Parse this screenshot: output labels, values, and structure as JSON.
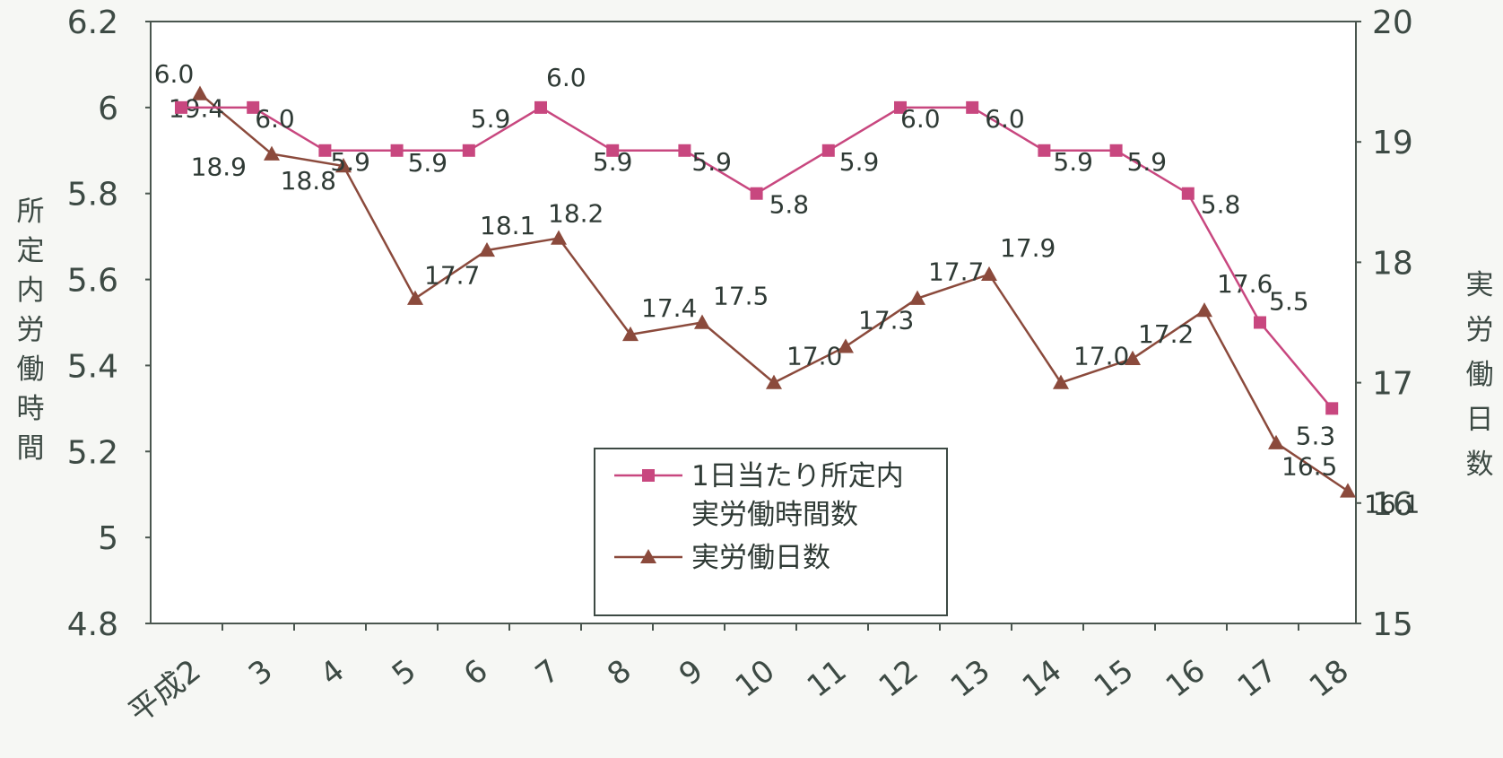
{
  "chart_data": {
    "type": "line",
    "x_categories": [
      "平成2",
      "3",
      "4",
      "5",
      "6",
      "7",
      "8",
      "9",
      "10",
      "11",
      "12",
      "13",
      "14",
      "15",
      "16",
      "17",
      "18"
    ],
    "left_axis": {
      "label": "所定内労働時間",
      "ylim": [
        4.8,
        6.2
      ],
      "ticks": [
        "6.2",
        "6",
        "5.8",
        "5.6",
        "5.4",
        "5.2",
        "5",
        "4.8"
      ]
    },
    "right_axis": {
      "label": "実労働日数",
      "ylim": [
        15,
        20
      ],
      "ticks": [
        "20",
        "19",
        "18",
        "17",
        "16",
        "15"
      ]
    },
    "series": [
      {
        "name": "1日当たり所定内実労働時間数",
        "legend_lines": [
          "1日当たり所定内",
          "実労働時間数"
        ],
        "axis": "left",
        "color": "#c8477f",
        "marker": "square",
        "values": [
          6.0,
          6.0,
          5.9,
          5.9,
          5.9,
          6.0,
          5.9,
          5.9,
          5.8,
          5.9,
          6.0,
          6.0,
          5.9,
          5.9,
          5.8,
          5.5,
          5.3
        ],
        "labels": [
          "6.0",
          "6.0",
          "5.9",
          "5.9",
          "5.9",
          "6.0",
          "5.9",
          "5.9",
          "5.8",
          "5.9",
          "6.0",
          "6.0",
          "5.9",
          "5.9",
          "5.8",
          "5.5",
          "5.3"
        ]
      },
      {
        "name": "実労働日数",
        "legend_lines": [
          "実労働日数"
        ],
        "axis": "right",
        "color": "#8b4a3c",
        "marker": "triangle",
        "values": [
          19.4,
          18.9,
          18.8,
          17.7,
          18.1,
          18.2,
          17.4,
          17.5,
          17.0,
          17.3,
          17.7,
          17.9,
          17.0,
          17.2,
          17.6,
          16.5,
          16.1
        ],
        "labels": [
          "19.4",
          "18.9",
          "18.8",
          "17.7",
          "18.1",
          "18.2",
          "17.4",
          "17.5",
          "17.0",
          "17.3",
          "17.7",
          "17.9",
          "17.0",
          "17.2",
          "17.6",
          "16.5",
          "16.1"
        ]
      }
    ],
    "legend": {
      "placement": "bottom-center"
    },
    "grid": false
  }
}
